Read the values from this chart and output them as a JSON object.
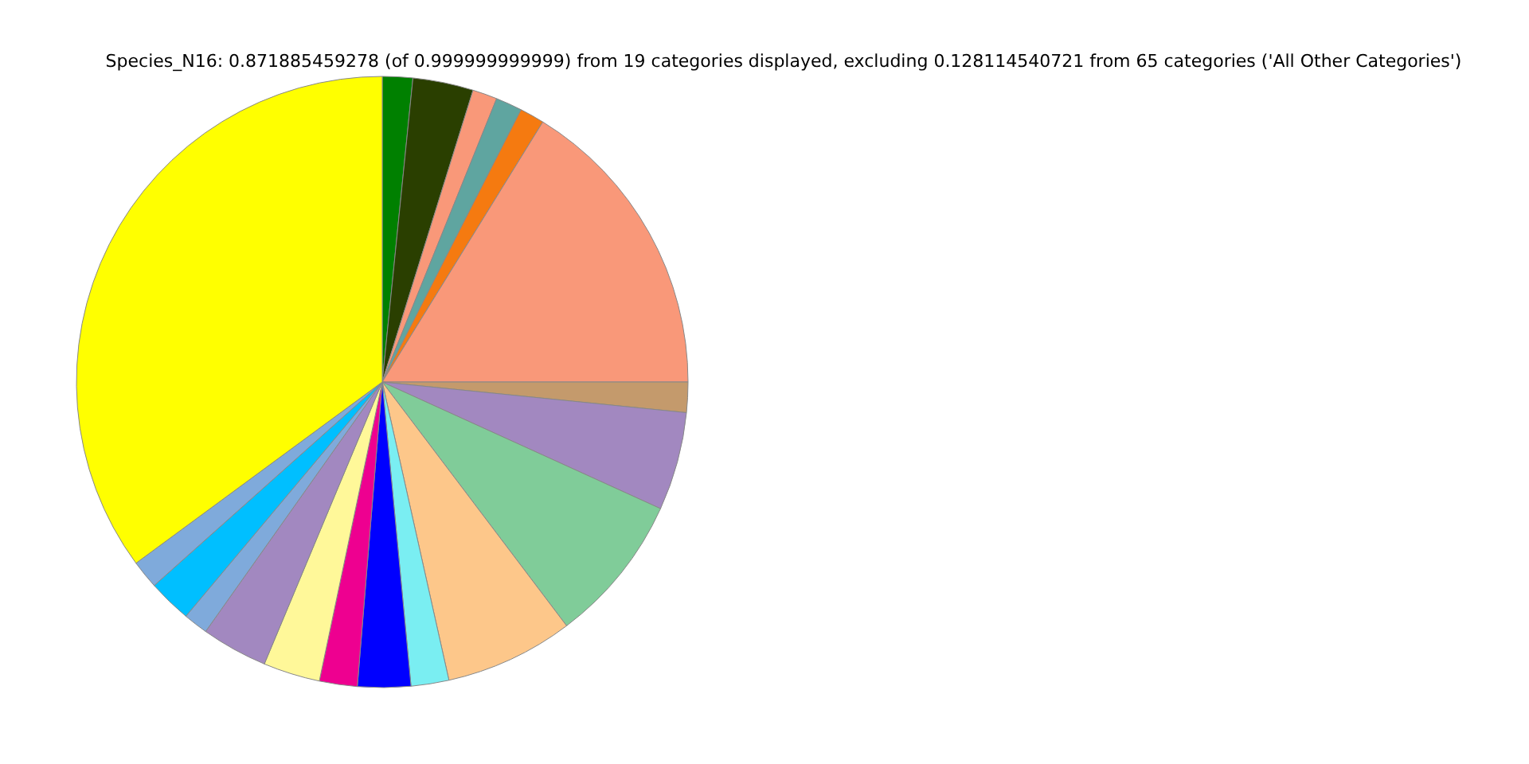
{
  "chart_data": {
    "type": "pie",
    "title": "Species_N16: 0.871885459278 (of 0.999999999999) from 19 categories displayed, excluding 0.128114540721 from 65 categories ('All Other Categories')",
    "categories": [
      null,
      null,
      null,
      null,
      null,
      null,
      null,
      null,
      null,
      null,
      null,
      null,
      null,
      null,
      null,
      null,
      null,
      null,
      null
    ],
    "values": [
      1.6,
      3.2,
      1.3,
      1.4,
      1.3,
      16.2,
      1.6,
      5.2,
      7.9,
      6.8,
      2.0,
      2.8,
      2.0,
      3.0,
      3.5,
      1.3,
      2.3,
      1.5,
      35.1
    ],
    "colors": [
      "#008000",
      "#2a3f00",
      "#f99879",
      "#5fa5a0",
      "#f57a10",
      "#f99879",
      "#c49a6c",
      "#a288c0",
      "#80cc99",
      "#fdc78a",
      "#7aeef2",
      "#0000ff",
      "#ee0090",
      "#fff899",
      "#a288c0",
      "#7faadb",
      "#00bfff",
      "#7faadb",
      "#ffff00"
    ],
    "legend": false
  }
}
